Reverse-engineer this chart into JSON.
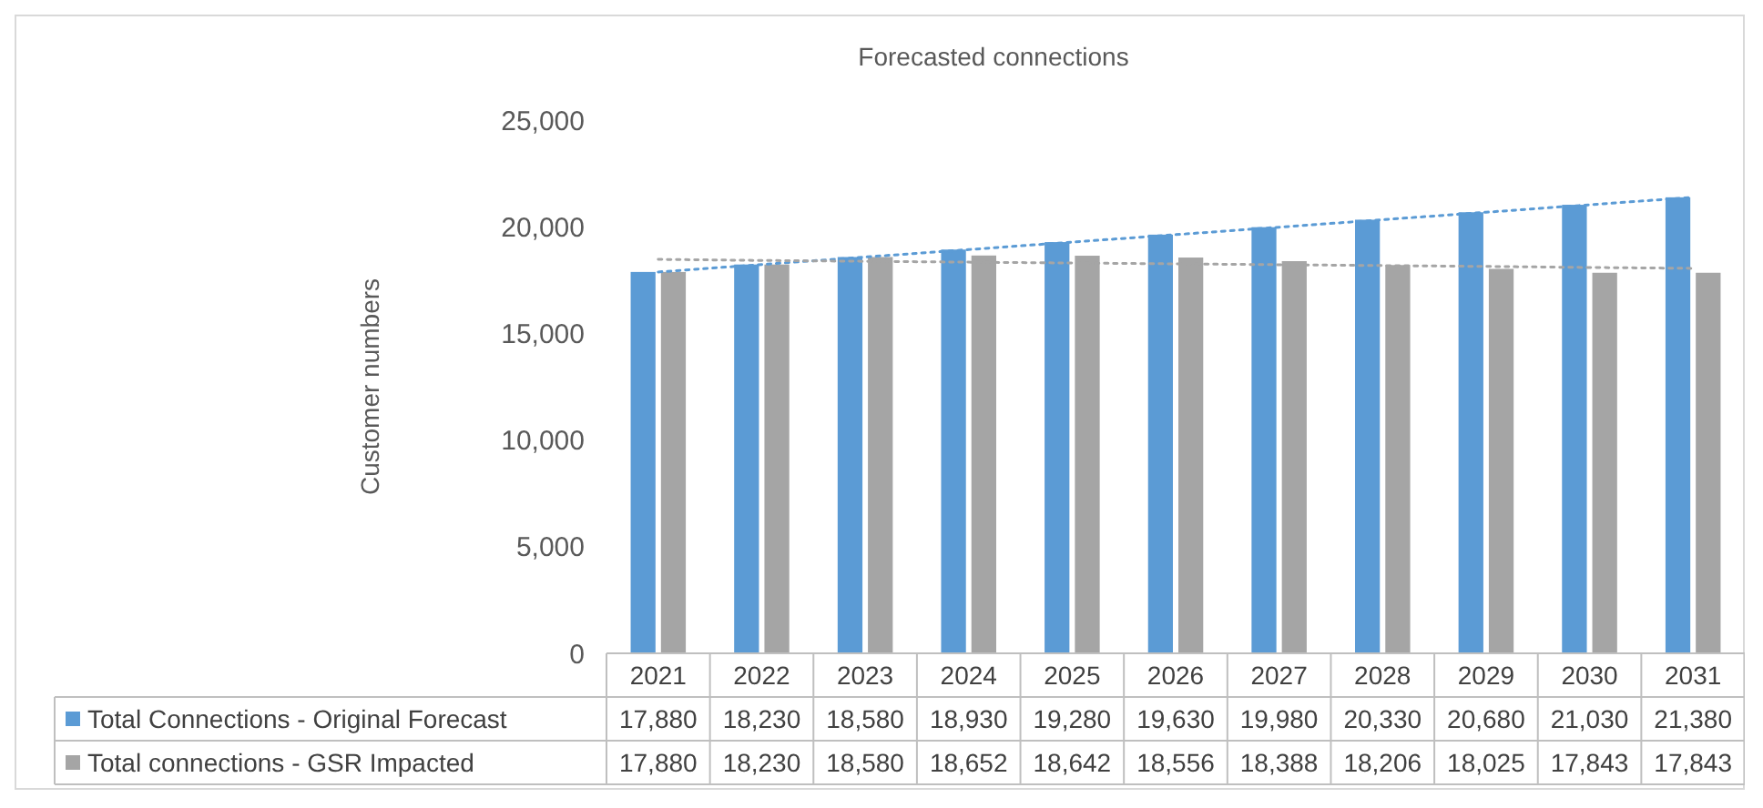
{
  "chart_data": {
    "type": "bar",
    "title": "Forecasted connections",
    "ylabel": "Customer numbers",
    "categories": [
      "2021",
      "2022",
      "2023",
      "2024",
      "2025",
      "2026",
      "2027",
      "2028",
      "2029",
      "2030",
      "2031"
    ],
    "series": [
      {
        "name": "Total Connections - Original Forecast",
        "color": "#5b9bd5",
        "values": [
          17880,
          18230,
          18580,
          18930,
          19280,
          19630,
          19980,
          20330,
          20680,
          21030,
          21380
        ],
        "value_labels": [
          "17,880",
          "18,230",
          "18,580",
          "18,930",
          "19,280",
          "19,630",
          "19,980",
          "20,330",
          "20,680",
          "21,030",
          "21,380"
        ]
      },
      {
        "name": "Total connections - GSR Impacted",
        "color": "#a5a5a5",
        "values": [
          17880,
          18230,
          18580,
          18652,
          18642,
          18556,
          18388,
          18206,
          18025,
          17843,
          17843
        ],
        "value_labels": [
          "17,880",
          "18,230",
          "18,580",
          "18,652",
          "18,642",
          "18,556",
          "18,388",
          "18,206",
          "18,025",
          "17,843",
          "17,843"
        ]
      },
      {
        "type": "line",
        "color": "#5b9bd5",
        "values": [
          17880,
          18230,
          18580,
          18930,
          19280,
          19630,
          19980,
          20330,
          20680,
          21030,
          21380
        ],
        "line_style": "dotted",
        "marker": "none"
      },
      {
        "type": "line",
        "color": "#a5a5a5",
        "values": [
          18470,
          18420,
          18380,
          18340,
          18300,
          18260,
          18220,
          18180,
          18140,
          18090,
          18050
        ],
        "line_style": "dotted",
        "marker": "none"
      }
    ],
    "ylim": [
      0,
      25000
    ],
    "yticks": [
      {
        "value": 0,
        "label": "0"
      },
      {
        "value": 5000,
        "label": "5,000"
      },
      {
        "value": 10000,
        "label": "10,000"
      },
      {
        "value": 15000,
        "label": "15,000"
      },
      {
        "value": 20000,
        "label": "20,000"
      },
      {
        "value": 25000,
        "label": "25,000"
      }
    ],
    "legend": "bottom"
  }
}
